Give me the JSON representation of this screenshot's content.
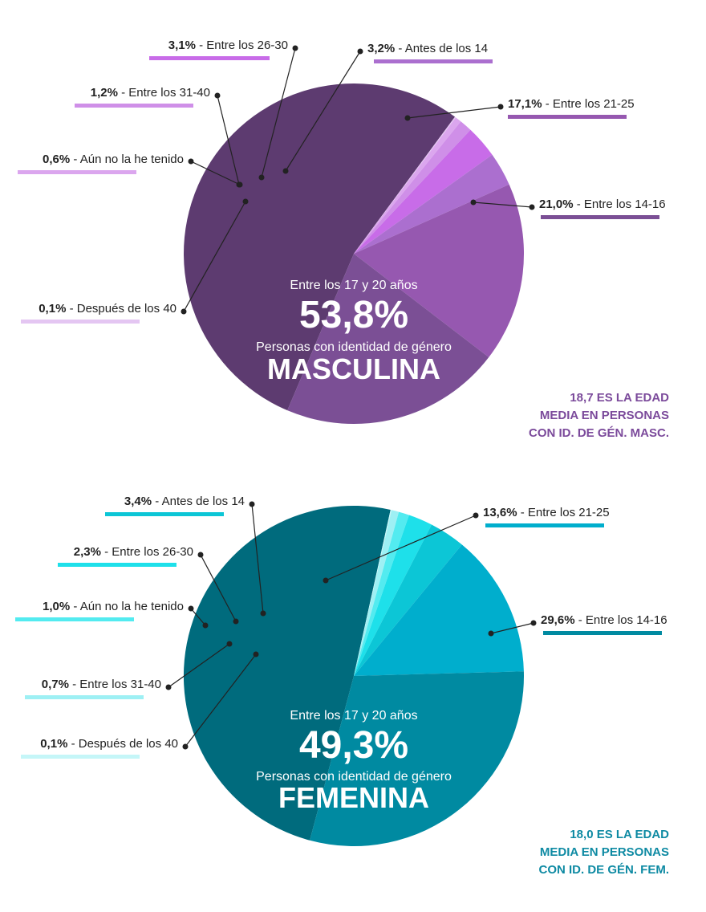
{
  "chart_data": [
    {
      "type": "pie",
      "center_label": "Entre los 17 y 20 años",
      "center_value": "53,8%",
      "center_sub": "Personas con identidad de género",
      "center_gender": "MASCULINA",
      "note_lines": [
        "18,7 ES LA EDAD",
        "MEDIA EN PERSONAS",
        "CON ID. DE GÉN. MASC."
      ],
      "note_color": "#7b4a9b",
      "slices": [
        {
          "pct": 53.8,
          "pct_label": "53,8%",
          "label": "Entre los 17 y 20 años",
          "color": "#5d3b70"
        },
        {
          "pct": 0.1,
          "pct_label": "0,1%",
          "label": "Después de los 40",
          "color": "#e4c6f2"
        },
        {
          "pct": 0.6,
          "pct_label": "0,6%",
          "label": "Aún no la he tenido",
          "color": "#dba6ee"
        },
        {
          "pct": 1.2,
          "pct_label": "1,2%",
          "label": "Entre los 31-40",
          "color": "#cf8fe8"
        },
        {
          "pct": 3.1,
          "pct_label": "3,1%",
          "label": "Entre los 26-30",
          "color": "#c86ce8"
        },
        {
          "pct": 3.2,
          "pct_label": "3,2%",
          "label": "Antes de los 14",
          "color": "#ab6fcf"
        },
        {
          "pct": 17.1,
          "pct_label": "17,1%",
          "label": "Entre los 21-25",
          "color": "#9658b0"
        },
        {
          "pct": 21.0,
          "pct_label": "21,0%",
          "label": "Entre los 14-16",
          "color": "#7b4f95"
        }
      ]
    },
    {
      "type": "pie",
      "center_label": "Entre los 17 y 20 años",
      "center_value": "49,3%",
      "center_sub": "Personas con identidad de género",
      "center_gender": "FEMENINA",
      "note_lines": [
        "18,0 ES LA EDAD",
        "MEDIA EN PERSONAS",
        "CON ID. DE GÉN. FEM."
      ],
      "note_color": "#0e8aa3",
      "slices": [
        {
          "pct": 49.3,
          "pct_label": "49,3%",
          "label": "Entre los 17 y 20 años",
          "color": "#006b7d"
        },
        {
          "pct": 0.1,
          "pct_label": "0,1%",
          "label": "Después de los 40",
          "color": "#c5f6f8"
        },
        {
          "pct": 0.7,
          "pct_label": "0,7%",
          "label": "Entre los 31-40",
          "color": "#9ef0f4"
        },
        {
          "pct": 1.0,
          "pct_label": "1,0%",
          "label": "Aún no la he tenido",
          "color": "#53ebf0"
        },
        {
          "pct": 2.3,
          "pct_label": "2,3%",
          "label": "Entre los 26-30",
          "color": "#1ee0ea"
        },
        {
          "pct": 3.4,
          "pct_label": "3,4%",
          "label": "Antes de los 14",
          "color": "#0cc6d6"
        },
        {
          "pct": 13.6,
          "pct_label": "13,6%",
          "label": "Entre los 21-25",
          "color": "#00aecd"
        },
        {
          "pct": 29.6,
          "pct_label": "29,6%",
          "label": "Entre los 14-16",
          "color": "#008aa1"
        }
      ]
    }
  ]
}
